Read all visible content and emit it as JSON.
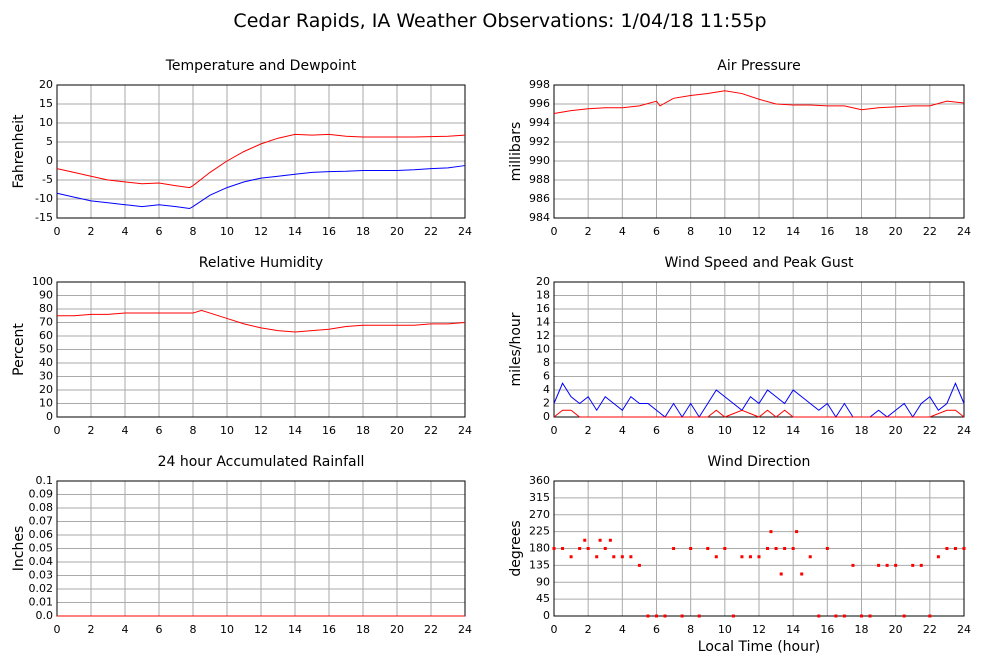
{
  "title": "Cedar Rapids, IA Weather Observations: 1/04/18 11:55p",
  "chart_data": [
    {
      "type": "line",
      "title": "Temperature and Dewpoint",
      "ylabel": "Fahrenheit",
      "grid": true,
      "xlim": [
        0,
        24
      ],
      "xticks": [
        0,
        2,
        4,
        6,
        8,
        10,
        12,
        14,
        16,
        18,
        20,
        22,
        24
      ],
      "ylim": [
        -15,
        20
      ],
      "yticks": [
        -15,
        -10,
        -5,
        0,
        5,
        10,
        15,
        20
      ],
      "series": [
        {
          "color": "#ff0000",
          "x": [
            0,
            1,
            2,
            3,
            4,
            5,
            6,
            7,
            7.8,
            8,
            9,
            10,
            11,
            12,
            13,
            14,
            15,
            16,
            17,
            18,
            19,
            20,
            21,
            22,
            23,
            24
          ],
          "values": [
            -2,
            -3,
            -4,
            -5,
            -5.5,
            -6,
            -5.8,
            -6.5,
            -7,
            -6.5,
            -3,
            0,
            2.5,
            4.5,
            6,
            7,
            6.8,
            7,
            6.5,
            6.3,
            6.3,
            6.3,
            6.3,
            6.4,
            6.5,
            6.8
          ]
        },
        {
          "color": "#0000ff",
          "x": [
            0,
            1,
            2,
            3,
            4,
            5,
            6,
            7,
            7.8,
            8,
            9,
            10,
            11,
            12,
            13,
            14,
            15,
            16,
            17,
            18,
            19,
            20,
            21,
            22,
            23,
            24
          ],
          "values": [
            -8.5,
            -9.5,
            -10.5,
            -11,
            -11.5,
            -12,
            -11.5,
            -12,
            -12.5,
            -12,
            -9,
            -7,
            -5.5,
            -4.5,
            -4,
            -3.5,
            -3,
            -2.8,
            -2.7,
            -2.5,
            -2.5,
            -2.5,
            -2.3,
            -2,
            -1.8,
            -1.2
          ]
        }
      ]
    },
    {
      "type": "line",
      "title": "Air Pressure",
      "ylabel": "millibars",
      "grid": true,
      "xlim": [
        0,
        24
      ],
      "xticks": [
        0,
        2,
        4,
        6,
        8,
        10,
        12,
        14,
        16,
        18,
        20,
        22,
        24
      ],
      "ylim": [
        984,
        998
      ],
      "yticks": [
        984,
        986,
        988,
        990,
        992,
        994,
        996,
        998
      ],
      "series": [
        {
          "color": "#ff0000",
          "x": [
            0,
            1,
            2,
            3,
            4,
            5,
            6,
            6.2,
            7,
            8,
            9,
            10,
            11,
            12,
            13,
            14,
            15,
            16,
            17,
            18,
            19,
            20,
            21,
            22,
            23,
            24
          ],
          "values": [
            995.0,
            995.3,
            995.5,
            995.6,
            995.6,
            995.8,
            996.3,
            995.8,
            996.6,
            996.9,
            997.1,
            997.4,
            997.1,
            996.5,
            996.0,
            995.9,
            995.9,
            995.8,
            995.8,
            995.4,
            995.6,
            995.7,
            995.8,
            995.8,
            996.3,
            996.1
          ]
        }
      ]
    },
    {
      "type": "line",
      "title": "Relative Humidity",
      "ylabel": "Percent",
      "grid": true,
      "xlim": [
        0,
        24
      ],
      "xticks": [
        0,
        2,
        4,
        6,
        8,
        10,
        12,
        14,
        16,
        18,
        20,
        22,
        24
      ],
      "ylim": [
        0,
        100
      ],
      "yticks": [
        0,
        10,
        20,
        30,
        40,
        50,
        60,
        70,
        80,
        90,
        100
      ],
      "series": [
        {
          "color": "#ff0000",
          "x": [
            0,
            1,
            2,
            3,
            4,
            5,
            6,
            7,
            8,
            8.5,
            9,
            10,
            11,
            12,
            13,
            14,
            15,
            16,
            17,
            18,
            19,
            20,
            21,
            22,
            23,
            24
          ],
          "values": [
            75,
            75,
            76,
            76,
            77,
            77,
            77,
            77,
            77,
            79,
            77,
            73,
            69,
            66,
            64,
            63,
            64,
            65,
            67,
            68,
            68,
            68,
            68,
            69,
            69,
            70
          ]
        }
      ]
    },
    {
      "type": "line",
      "title": "Wind Speed and Peak Gust",
      "ylabel": "miles/hour",
      "grid": true,
      "xlim": [
        0,
        24
      ],
      "xticks": [
        0,
        2,
        4,
        6,
        8,
        10,
        12,
        14,
        16,
        18,
        20,
        22,
        24
      ],
      "ylim": [
        0,
        20
      ],
      "yticks": [
        0,
        2,
        4,
        6,
        8,
        10,
        12,
        14,
        16,
        18,
        20
      ],
      "series": [
        {
          "color": "#0000ff",
          "x": [
            0,
            0.5,
            1,
            1.5,
            2,
            2.5,
            3,
            3.5,
            4,
            4.5,
            5,
            5.5,
            6,
            6.5,
            7,
            7.5,
            8,
            8.5,
            9,
            9.5,
            10,
            10.5,
            11,
            11.5,
            12,
            12.5,
            13,
            13.5,
            14,
            14.5,
            15,
            15.5,
            16,
            16.5,
            17,
            17.5,
            18,
            18.5,
            19,
            19.5,
            20,
            20.5,
            21,
            21.5,
            22,
            22.5,
            23,
            23.5,
            24
          ],
          "values": [
            2,
            5,
            3,
            2,
            3,
            1,
            3,
            2,
            1,
            3,
            2,
            2,
            1,
            0,
            2,
            0,
            2,
            0,
            2,
            4,
            3,
            2,
            1,
            3,
            2,
            4,
            3,
            2,
            4,
            3,
            2,
            1,
            2,
            0,
            2,
            0,
            0,
            0,
            1,
            0,
            1,
            2,
            0,
            2,
            3,
            1,
            2,
            5,
            2
          ]
        },
        {
          "color": "#ff0000",
          "x": [
            0,
            0.5,
            1,
            1.5,
            2,
            9,
            9.5,
            10,
            11,
            12,
            12.5,
            13,
            13.5,
            14,
            15,
            22,
            23,
            23.5,
            24
          ],
          "values": [
            0,
            1,
            1,
            0,
            0,
            0,
            1,
            0,
            1,
            0,
            1,
            0,
            1,
            0,
            0,
            0,
            1,
            1,
            0
          ]
        }
      ]
    },
    {
      "type": "line",
      "title": "24 hour Accumulated Rainfall",
      "ylabel": "Inches",
      "grid": true,
      "xlim": [
        0,
        24
      ],
      "xticks": [
        0,
        2,
        4,
        6,
        8,
        10,
        12,
        14,
        16,
        18,
        20,
        22,
        24
      ],
      "ylim": [
        0,
        0.1
      ],
      "yticks": [
        {
          "value": 0,
          "label": "0.0"
        },
        0.01,
        0.02,
        0.03,
        0.04,
        0.05,
        0.06,
        0.07,
        0.08,
        0.09,
        0.1
      ],
      "series": [
        {
          "color": "#ff0000",
          "x": [
            0,
            24
          ],
          "values": [
            0,
            0
          ]
        }
      ]
    },
    {
      "type": "scatter",
      "title": "Wind Direction",
      "ylabel": "degrees",
      "xlabel": "Local Time (hour)",
      "grid": true,
      "xlim": [
        0,
        24
      ],
      "xticks": [
        0,
        2,
        4,
        6,
        8,
        10,
        12,
        14,
        16,
        18,
        20,
        22,
        24
      ],
      "ylim": [
        0,
        360
      ],
      "yticks": [
        0,
        45,
        90,
        135,
        180,
        225,
        270,
        315,
        360
      ],
      "series": [
        {
          "color": "#ff0000",
          "x": [
            0,
            0.5,
            1,
            1.5,
            2,
            2.5,
            3,
            3.5,
            4,
            4.5,
            5,
            5.5,
            6,
            6.5,
            7,
            7.5,
            8,
            8.5,
            9,
            9.5,
            10,
            10.5,
            11,
            11.5,
            12,
            12.5,
            12.7,
            13,
            13.3,
            13.5,
            14,
            14.2,
            14.5,
            15,
            15.5,
            16,
            16.5,
            17,
            17.5,
            18,
            18.5,
            19,
            19.5,
            20,
            20.5,
            21,
            21.5,
            22,
            22.5,
            23,
            23.5,
            24,
            1.8,
            2.7,
            3.3
          ],
          "values": [
            180,
            180,
            158,
            180,
            180,
            158,
            180,
            158,
            158,
            158,
            135,
            0,
            0,
            0,
            180,
            0,
            180,
            0,
            180,
            158,
            180,
            0,
            158,
            158,
            158,
            180,
            225,
            180,
            112,
            180,
            180,
            225,
            112,
            158,
            0,
            180,
            0,
            0,
            135,
            0,
            0,
            135,
            135,
            135,
            0,
            135,
            135,
            0,
            158,
            180,
            180,
            180,
            202,
            202,
            202
          ]
        }
      ]
    }
  ]
}
